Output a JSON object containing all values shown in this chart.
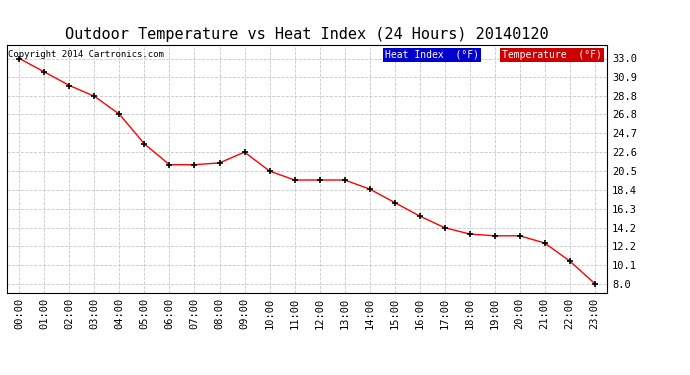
{
  "title": "Outdoor Temperature vs Heat Index (24 Hours) 20140120",
  "copyright": "Copyright 2014 Cartronics.com",
  "x_labels": [
    "00:00",
    "01:00",
    "02:00",
    "03:00",
    "04:00",
    "05:00",
    "06:00",
    "07:00",
    "08:00",
    "09:00",
    "10:00",
    "11:00",
    "12:00",
    "13:00",
    "14:00",
    "15:00",
    "16:00",
    "17:00",
    "18:00",
    "19:00",
    "20:00",
    "21:00",
    "22:00",
    "23:00"
  ],
  "temperature": [
    33.0,
    31.5,
    30.0,
    28.8,
    26.8,
    23.5,
    21.2,
    21.2,
    21.4,
    22.6,
    20.5,
    19.5,
    19.5,
    19.5,
    18.5,
    17.0,
    15.5,
    14.2,
    13.5,
    13.3,
    13.3,
    12.5,
    10.5,
    8.0
  ],
  "ylim_min": 7.0,
  "ylim_max": 34.5,
  "yticks": [
    8.0,
    10.1,
    12.2,
    14.2,
    16.3,
    18.4,
    20.5,
    22.6,
    24.7,
    26.8,
    28.8,
    30.9,
    33.0
  ],
  "temp_color": "#ff0000",
  "heat_index_color": "#ff0000",
  "bg_color": "#ffffff",
  "grid_color": "#c8c8c8",
  "title_color": "#000000",
  "legend_heat_bg": "#0000cc",
  "legend_temp_bg": "#cc0000",
  "legend_text_color": "#ffffff",
  "title_fontsize": 11,
  "copyright_fontsize": 6.5,
  "tick_fontsize": 7.5,
  "legend_fontsize": 7
}
